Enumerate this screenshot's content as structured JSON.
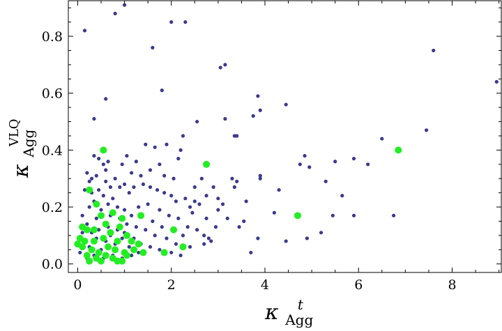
{
  "chart_data": {
    "type": "scatter",
    "xlim": [
      -0.2,
      9.05
    ],
    "ylim": [
      -0.03,
      0.925
    ],
    "x_ticks": [
      0,
      2,
      4,
      6,
      8
    ],
    "y_ticks": [
      0.0,
      0.2,
      0.4,
      0.6,
      0.8
    ],
    "x_tick_labels": [
      "0",
      "2",
      "4",
      "6",
      "8"
    ],
    "y_tick_labels": [
      "0.0",
      "0.2",
      "0.4",
      "0.6",
      "0.8"
    ],
    "xlabel": {
      "symbol": "κ",
      "sub": "Agg",
      "sup": "t"
    },
    "ylabel": {
      "symbol": "κ",
      "sub": "Agg",
      "sup": "VLQ"
    },
    "grid": false,
    "series": [
      {
        "color": "#3a3a8c",
        "marker": "small-circle",
        "points": [
          [
            0.15,
            0.82
          ],
          [
            0.8,
            0.88
          ],
          [
            1.0,
            0.91
          ],
          [
            2.0,
            0.85
          ],
          [
            2.3,
            0.85
          ],
          [
            1.6,
            0.76
          ],
          [
            1.8,
            0.61
          ],
          [
            0.6,
            0.58
          ],
          [
            0.35,
            0.51
          ],
          [
            3.05,
            0.69
          ],
          [
            3.15,
            0.7
          ],
          [
            3.15,
            0.51
          ],
          [
            3.85,
            0.59
          ],
          [
            3.9,
            0.54
          ],
          [
            3.75,
            0.52
          ],
          [
            3.4,
            0.45
          ],
          [
            3.35,
            0.45
          ],
          [
            2.55,
            0.5
          ],
          [
            2.25,
            0.45
          ],
          [
            4.45,
            0.56
          ],
          [
            7.6,
            0.75
          ],
          [
            8.95,
            0.64
          ],
          [
            7.45,
            0.47
          ],
          [
            6.5,
            0.44
          ],
          [
            5.5,
            0.36
          ],
          [
            5.9,
            0.37
          ],
          [
            6.2,
            0.35
          ],
          [
            4.85,
            0.38
          ],
          [
            4.75,
            0.35
          ],
          [
            4.95,
            0.34
          ],
          [
            5.65,
            0.24
          ],
          [
            5.3,
            0.29
          ],
          [
            4.3,
            0.26
          ],
          [
            5.45,
            0.17
          ],
          [
            5.9,
            0.17
          ],
          [
            6.75,
            0.17
          ],
          [
            5.2,
            0.11
          ],
          [
            4.9,
            0.09
          ],
          [
            4.45,
            0.08
          ],
          [
            4.2,
            0.18
          ],
          [
            3.7,
            0.04
          ],
          [
            3.85,
            0.09
          ],
          [
            3.9,
            0.31
          ],
          [
            3.9,
            0.3
          ],
          [
            3.35,
            0.27
          ],
          [
            3.4,
            0.29
          ],
          [
            3.3,
            0.3
          ],
          [
            3.55,
            0.15
          ],
          [
            2.95,
            0.13
          ],
          [
            3.0,
            0.19
          ],
          [
            2.9,
            0.27
          ],
          [
            3.2,
            0.16
          ],
          [
            2.75,
            0.16
          ],
          [
            2.7,
            0.1
          ],
          [
            2.8,
            0.09
          ],
          [
            2.7,
            0.07
          ],
          [
            2.55,
            0.12
          ],
          [
            2.45,
            0.18
          ],
          [
            2.5,
            0.22
          ],
          [
            2.2,
            0.4
          ],
          [
            2.15,
            0.37
          ],
          [
            1.9,
            0.42
          ],
          [
            1.65,
            0.41
          ],
          [
            1.45,
            0.42
          ],
          [
            1.25,
            0.36
          ],
          [
            0.95,
            0.35
          ],
          [
            1.05,
            0.38
          ],
          [
            0.55,
            0.35
          ],
          [
            0.45,
            0.37
          ],
          [
            0.35,
            0.38
          ],
          [
            0.2,
            0.32
          ],
          [
            0.3,
            0.3
          ],
          [
            0.45,
            0.26
          ],
          [
            0.6,
            0.33
          ],
          [
            0.65,
            0.36
          ],
          [
            0.8,
            0.3
          ],
          [
            0.9,
            0.27
          ],
          [
            1.0,
            0.28
          ],
          [
            1.1,
            0.25
          ],
          [
            1.2,
            0.27
          ],
          [
            1.4,
            0.28
          ],
          [
            1.55,
            0.27
          ],
          [
            1.7,
            0.26
          ],
          [
            1.85,
            0.25
          ],
          [
            2.0,
            0.24
          ],
          [
            2.1,
            0.22
          ],
          [
            2.3,
            0.23
          ],
          [
            2.4,
            0.2
          ],
          [
            2.6,
            0.21
          ],
          [
            1.3,
            0.2
          ],
          [
            1.5,
            0.21
          ],
          [
            1.75,
            0.19
          ],
          [
            1.95,
            0.17
          ],
          [
            2.15,
            0.16
          ],
          [
            2.35,
            0.13
          ],
          [
            1.6,
            0.15
          ],
          [
            1.8,
            0.13
          ],
          [
            2.05,
            0.12
          ],
          [
            2.25,
            0.1
          ],
          [
            1.45,
            0.12
          ],
          [
            1.65,
            0.1
          ],
          [
            1.9,
            0.09
          ],
          [
            2.1,
            0.07
          ],
          [
            2.4,
            0.06
          ],
          [
            1.35,
            0.07
          ],
          [
            1.55,
            0.06
          ],
          [
            1.75,
            0.05
          ],
          [
            2.0,
            0.04
          ],
          [
            2.2,
            0.03
          ],
          [
            0.1,
            0.17
          ],
          [
            0.2,
            0.14
          ],
          [
            0.25,
            0.2
          ],
          [
            0.35,
            0.22
          ],
          [
            0.4,
            0.16
          ],
          [
            0.5,
            0.19
          ],
          [
            0.55,
            0.24
          ],
          [
            0.65,
            0.21
          ],
          [
            0.7,
            0.17
          ],
          [
            0.75,
            0.23
          ],
          [
            0.85,
            0.2
          ],
          [
            0.9,
            0.16
          ],
          [
            1.0,
            0.19
          ],
          [
            1.05,
            0.14
          ],
          [
            1.15,
            0.17
          ],
          [
            0.15,
            0.08
          ],
          [
            0.25,
            0.06
          ],
          [
            0.3,
            0.11
          ],
          [
            0.4,
            0.09
          ],
          [
            0.45,
            0.12
          ],
          [
            0.5,
            0.05
          ],
          [
            0.6,
            0.08
          ],
          [
            0.65,
            0.13
          ],
          [
            0.7,
            0.1
          ],
          [
            0.8,
            0.07
          ],
          [
            0.85,
            0.12
          ],
          [
            0.95,
            0.09
          ],
          [
            1.0,
            0.11
          ],
          [
            1.1,
            0.06
          ],
          [
            1.2,
            0.09
          ],
          [
            1.25,
            0.13
          ],
          [
            1.3,
            0.04
          ],
          [
            0.05,
            0.04
          ],
          [
            0.1,
            0.11
          ],
          [
            0.2,
            0.02
          ],
          [
            0.35,
            0.03
          ],
          [
            0.55,
            0.02
          ],
          [
            0.75,
            0.03
          ],
          [
            0.95,
            0.02
          ],
          [
            1.15,
            0.03
          ],
          [
            2.85,
            0.08
          ],
          [
            3.1,
            0.21
          ],
          [
            3.6,
            0.22
          ],
          [
            3.45,
            0.13
          ],
          [
            2.65,
            0.3
          ],
          [
            1.55,
            0.33
          ],
          [
            1.85,
            0.31
          ],
          [
            2.05,
            0.3
          ],
          [
            1.35,
            0.31
          ],
          [
            1.15,
            0.32
          ],
          [
            1.75,
            0.35
          ],
          [
            2.5,
            0.27
          ],
          [
            2.75,
            0.24
          ],
          [
            3.0,
            0.23
          ],
          [
            0.3,
            0.25
          ],
          [
            0.15,
            0.26
          ],
          [
            0.25,
            0.29
          ],
          [
            0.6,
            0.29
          ],
          [
            0.7,
            0.27
          ],
          [
            0.4,
            0.31
          ]
        ]
      },
      {
        "color": "#22ee22",
        "marker": "large-circle",
        "points": [
          [
            0.55,
            0.4
          ],
          [
            2.75,
            0.35
          ],
          [
            6.85,
            0.4
          ],
          [
            0.25,
            0.26
          ],
          [
            0.4,
            0.21
          ],
          [
            0.5,
            0.17
          ],
          [
            0.75,
            0.18
          ],
          [
            1.35,
            0.17
          ],
          [
            0.95,
            0.16
          ],
          [
            4.7,
            0.17
          ],
          [
            0.2,
            0.12
          ],
          [
            2.05,
            0.12
          ],
          [
            0.05,
            0.09
          ],
          [
            0.15,
            0.08
          ],
          [
            0.35,
            0.08
          ],
          [
            0.55,
            0.09
          ],
          [
            0.85,
            0.08
          ],
          [
            1.15,
            0.08
          ],
          [
            1.3,
            0.07
          ],
          [
            0.1,
            0.06
          ],
          [
            0.3,
            0.05
          ],
          [
            0.45,
            0.04
          ],
          [
            0.65,
            0.06
          ],
          [
            0.8,
            0.05
          ],
          [
            1.0,
            0.04
          ],
          [
            1.2,
            0.05
          ],
          [
            2.25,
            0.06
          ],
          [
            1.85,
            0.04
          ],
          [
            0.2,
            0.03
          ],
          [
            0.4,
            0.02
          ],
          [
            0.6,
            0.03
          ],
          [
            0.75,
            0.02
          ],
          [
            0.95,
            0.01
          ],
          [
            0.25,
            0.01
          ],
          [
            0.5,
            0.01
          ],
          [
            0.0,
            0.07
          ],
          [
            0.1,
            0.13
          ],
          [
            0.7,
            0.11
          ],
          [
            0.9,
            0.13
          ],
          [
            1.05,
            0.1
          ],
          [
            0.6,
            0.14
          ],
          [
            0.35,
            0.12
          ],
          [
            1.05,
            0.03
          ],
          [
            1.4,
            0.04
          ],
          [
            0.85,
            0.01
          ]
        ]
      }
    ]
  }
}
